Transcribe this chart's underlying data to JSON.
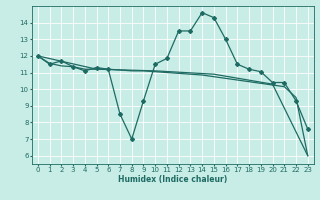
{
  "xlabel": "Humidex (Indice chaleur)",
  "bg_color": "#c8ece6",
  "grid_color": "#ffffff",
  "line_color": "#1e6b63",
  "xlim": [
    -0.5,
    23.5
  ],
  "ylim": [
    5.5,
    15.0
  ],
  "yticks": [
    6,
    7,
    8,
    9,
    10,
    11,
    12,
    13,
    14
  ],
  "xticks": [
    0,
    1,
    2,
    3,
    4,
    5,
    6,
    7,
    8,
    9,
    10,
    11,
    12,
    13,
    14,
    15,
    16,
    17,
    18,
    19,
    20,
    21,
    22,
    23
  ],
  "s1_x": [
    0,
    1,
    2,
    3,
    4,
    5,
    6,
    7,
    8,
    9,
    10,
    11,
    12,
    13,
    14,
    15,
    16,
    17,
    18,
    19,
    20,
    21,
    22,
    23
  ],
  "s1_y": [
    12.0,
    11.5,
    11.7,
    11.35,
    11.1,
    11.3,
    11.2,
    8.5,
    7.0,
    9.3,
    11.5,
    11.85,
    13.5,
    13.5,
    14.6,
    14.3,
    13.0,
    11.5,
    11.2,
    11.05,
    10.4,
    10.4,
    9.3,
    7.6
  ],
  "s2_x": [
    0,
    1,
    2,
    3,
    4,
    5,
    6,
    7,
    8,
    9,
    10,
    11,
    12,
    13,
    14,
    15,
    16,
    17,
    18,
    19,
    20,
    21,
    22,
    23
  ],
  "s2_y": [
    12.0,
    11.55,
    11.4,
    11.35,
    11.2,
    11.2,
    11.2,
    11.15,
    11.1,
    11.1,
    11.05,
    11.0,
    10.95,
    10.9,
    10.85,
    10.75,
    10.65,
    10.55,
    10.45,
    10.35,
    10.25,
    10.15,
    9.5,
    6.0
  ],
  "s3_x": [
    0,
    5,
    10,
    15,
    20,
    23
  ],
  "s3_y": [
    12.0,
    11.2,
    11.1,
    10.9,
    10.3,
    6.0
  ],
  "marker": "D",
  "markersize": 2.0,
  "linewidth": 0.9
}
